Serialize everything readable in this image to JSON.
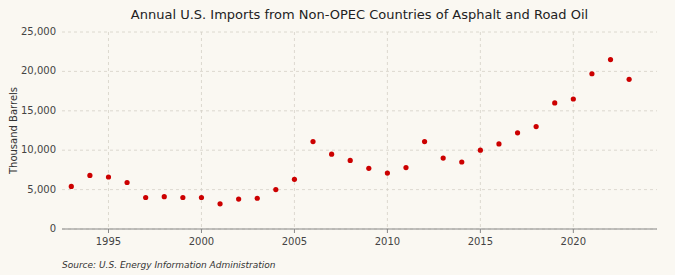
{
  "chart_data": {
    "type": "scatter",
    "title": "Annual U.S. Imports from Non-OPEC Countries of Asphalt and Road Oil",
    "y_label": "Thousand Barrels",
    "source": "Source: U.S. Energy Information Administration",
    "color": "#cc0000",
    "x": [
      1993,
      1994,
      1995,
      1996,
      1997,
      1998,
      1999,
      2000,
      2001,
      2002,
      2003,
      2004,
      2005,
      2006,
      2007,
      2008,
      2009,
      2010,
      2011,
      2012,
      2013,
      2014,
      2015,
      2016,
      2017,
      2018,
      2019,
      2020,
      2021,
      2022,
      2023
    ],
    "values": [
      5400,
      6800,
      6600,
      5900,
      4000,
      4100,
      4000,
      4000,
      3200,
      3800,
      3900,
      5000,
      6300,
      11100,
      9500,
      8700,
      7700,
      7100,
      7800,
      11100,
      9000,
      8500,
      10000,
      10800,
      12200,
      13000,
      16000,
      16500,
      19700,
      21500,
      19000
    ],
    "xlim": [
      1992.5,
      2024.5
    ],
    "xticks": [
      1995,
      2000,
      2005,
      2010,
      2015,
      2020
    ],
    "ylim": [
      0,
      25000
    ],
    "yticks": [
      0,
      {
        "value": 5000,
        "label": "5,000"
      },
      {
        "value": 10000,
        "label": "10,000"
      },
      {
        "value": 15000,
        "label": "15,000"
      },
      {
        "value": 20000,
        "label": "20,000"
      },
      {
        "value": 25000,
        "label": "25,000"
      }
    ],
    "grid": true
  }
}
